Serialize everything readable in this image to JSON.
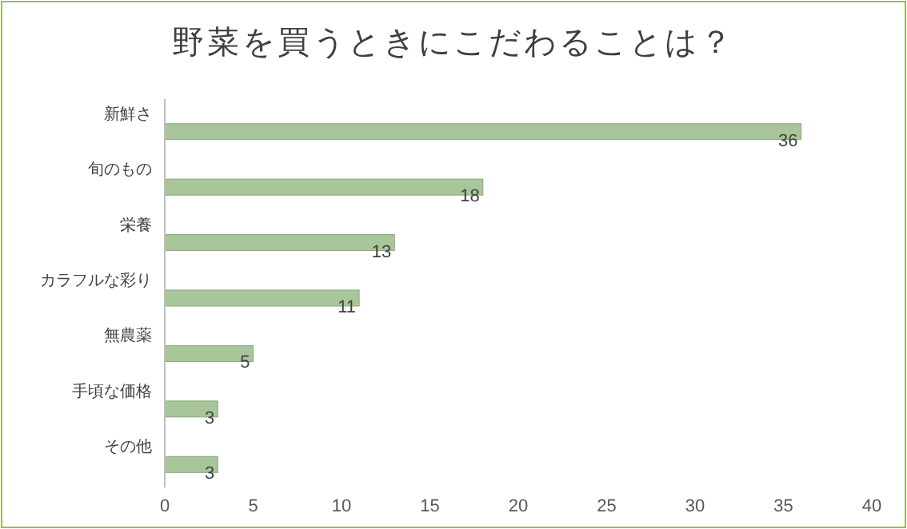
{
  "chart_data": {
    "type": "bar",
    "orientation": "horizontal",
    "title": "野菜を買うときにこだわることは？",
    "categories": [
      "新鮮さ",
      "旬のもの",
      "栄養",
      "カラフルな彩り",
      "無農薬",
      "手頃な価格",
      "その他"
    ],
    "values": [
      36,
      18,
      13,
      11,
      5,
      3,
      3
    ],
    "color": "#a9c59a",
    "xlim": [
      0,
      40
    ],
    "xticks": [
      0,
      5,
      10,
      15,
      20,
      25,
      30,
      35,
      40
    ],
    "data_labels": true
  }
}
